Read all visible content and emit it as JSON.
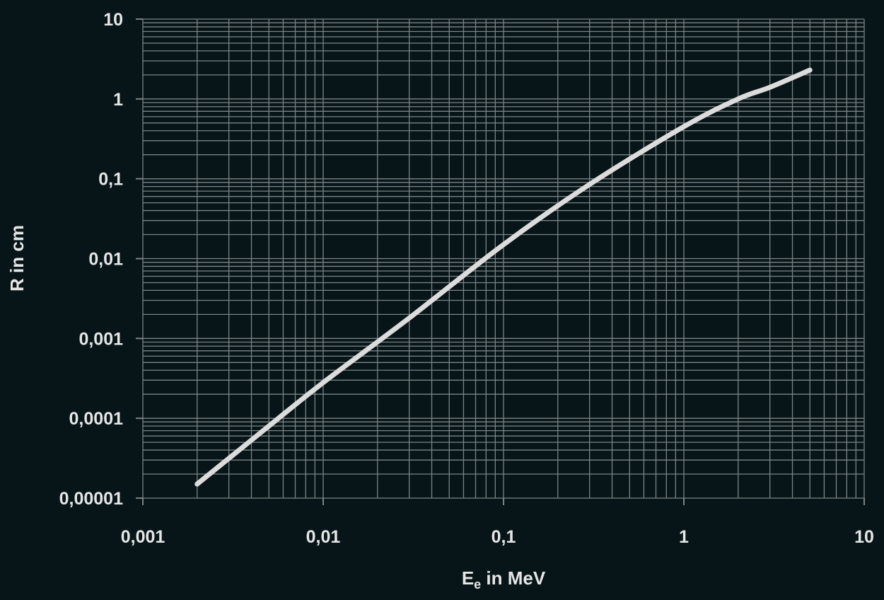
{
  "chart_data": {
    "type": "line",
    "xlabel": "E",
    "xlabel_sub": "e",
    "xlabel_suffix": " in MeV",
    "ylabel": "R in cm",
    "x_scale": "log",
    "y_scale": "log",
    "xlim": [
      0.001,
      10
    ],
    "ylim": [
      1e-05,
      10
    ],
    "grid": true,
    "x_tick_labels": [
      "0,001",
      "0,01",
      "0,1",
      "1",
      "10"
    ],
    "y_tick_labels": [
      "0,00001",
      "0,0001",
      "0,001",
      "0,01",
      "0,1",
      "1",
      "10"
    ],
    "series": [
      {
        "x": [
          0.002,
          0.005,
          0.01,
          0.03,
          0.1,
          0.3,
          1,
          2,
          3,
          5
        ],
        "y": [
          1.5e-05,
          8e-05,
          0.00028,
          0.0018,
          0.015,
          0.085,
          0.45,
          1.0,
          1.4,
          2.3
        ]
      }
    ],
    "colors": {
      "background": "#071519",
      "grid": "#7c8383",
      "line": "#dcdcdc",
      "text": "#e6e6e6"
    }
  }
}
